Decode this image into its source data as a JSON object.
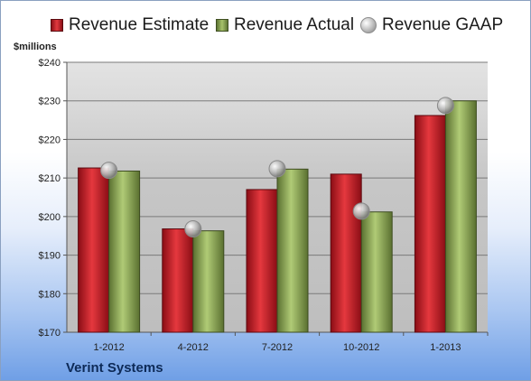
{
  "legend": {
    "estimate": "Revenue Estimate",
    "actual": "Revenue Actual",
    "gaap": "Revenue GAAP"
  },
  "unit_label": "$millions",
  "company": "Verint Systems",
  "colors": {
    "estimate": "#c41f27",
    "actual": "#8fae55",
    "gaap": "#bdbdbd"
  },
  "chart_data": {
    "type": "bar",
    "title": "",
    "xlabel": "",
    "ylabel": "$millions",
    "ylim": [
      170,
      240
    ],
    "y_ticks": [
      "$170",
      "$180",
      "$190",
      "$200",
      "$210",
      "$220",
      "$230",
      "$240"
    ],
    "grid": true,
    "legend_position": "top",
    "categories": [
      "1-2012",
      "4-2012",
      "7-2012",
      "10-2012",
      "1-2013"
    ],
    "series": [
      {
        "name": "Revenue Estimate",
        "type": "bar",
        "values": [
          212.6,
          196.8,
          207.0,
          211.0,
          226.2
        ]
      },
      {
        "name": "Revenue Actual",
        "type": "bar",
        "values": [
          211.8,
          196.3,
          212.3,
          201.2,
          230.0
        ]
      },
      {
        "name": "Revenue GAAP",
        "type": "scatter",
        "values": [
          212.0,
          196.8,
          212.4,
          201.4,
          228.8
        ]
      }
    ]
  }
}
